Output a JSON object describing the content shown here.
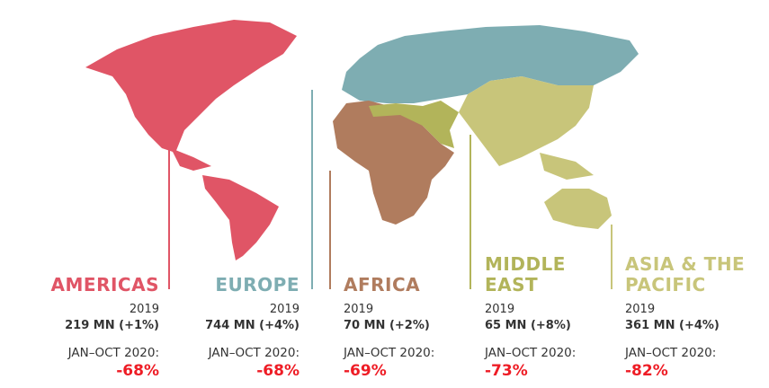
{
  "colors": {
    "americas": "#e05566",
    "europe": "#7eadb2",
    "africa": "#b07c5e",
    "middle_east": "#b2b45a",
    "asia_pacific": "#c8c57a",
    "decline": "#ee1c25"
  },
  "regions": [
    {
      "name": "AMERICAS",
      "year": "2019",
      "arrivals": "219 MN (+1%)",
      "period": "JAN–OCT 2020:",
      "change": "-68%"
    },
    {
      "name": "EUROPE",
      "year": "2019",
      "arrivals": "744 MN (+4%)",
      "period": "JAN–OCT 2020:",
      "change": "-68%"
    },
    {
      "name": "AFRICA",
      "year": "2019",
      "arrivals": "70 MN (+2%)",
      "period": "JAN–OCT 2020:",
      "change": "-69%"
    },
    {
      "name_line1": "MIDDLE",
      "name_line2": "EAST",
      "year": "2019",
      "arrivals": "65 MN (+8%)",
      "period": "JAN–OCT 2020:",
      "change": "-73%"
    },
    {
      "name_line1": "ASIA & THE",
      "name_line2": "PACIFIC",
      "year": "2019",
      "arrivals": "361 MN (+4%)",
      "period": "JAN–OCT 2020:",
      "change": "-82%"
    }
  ]
}
